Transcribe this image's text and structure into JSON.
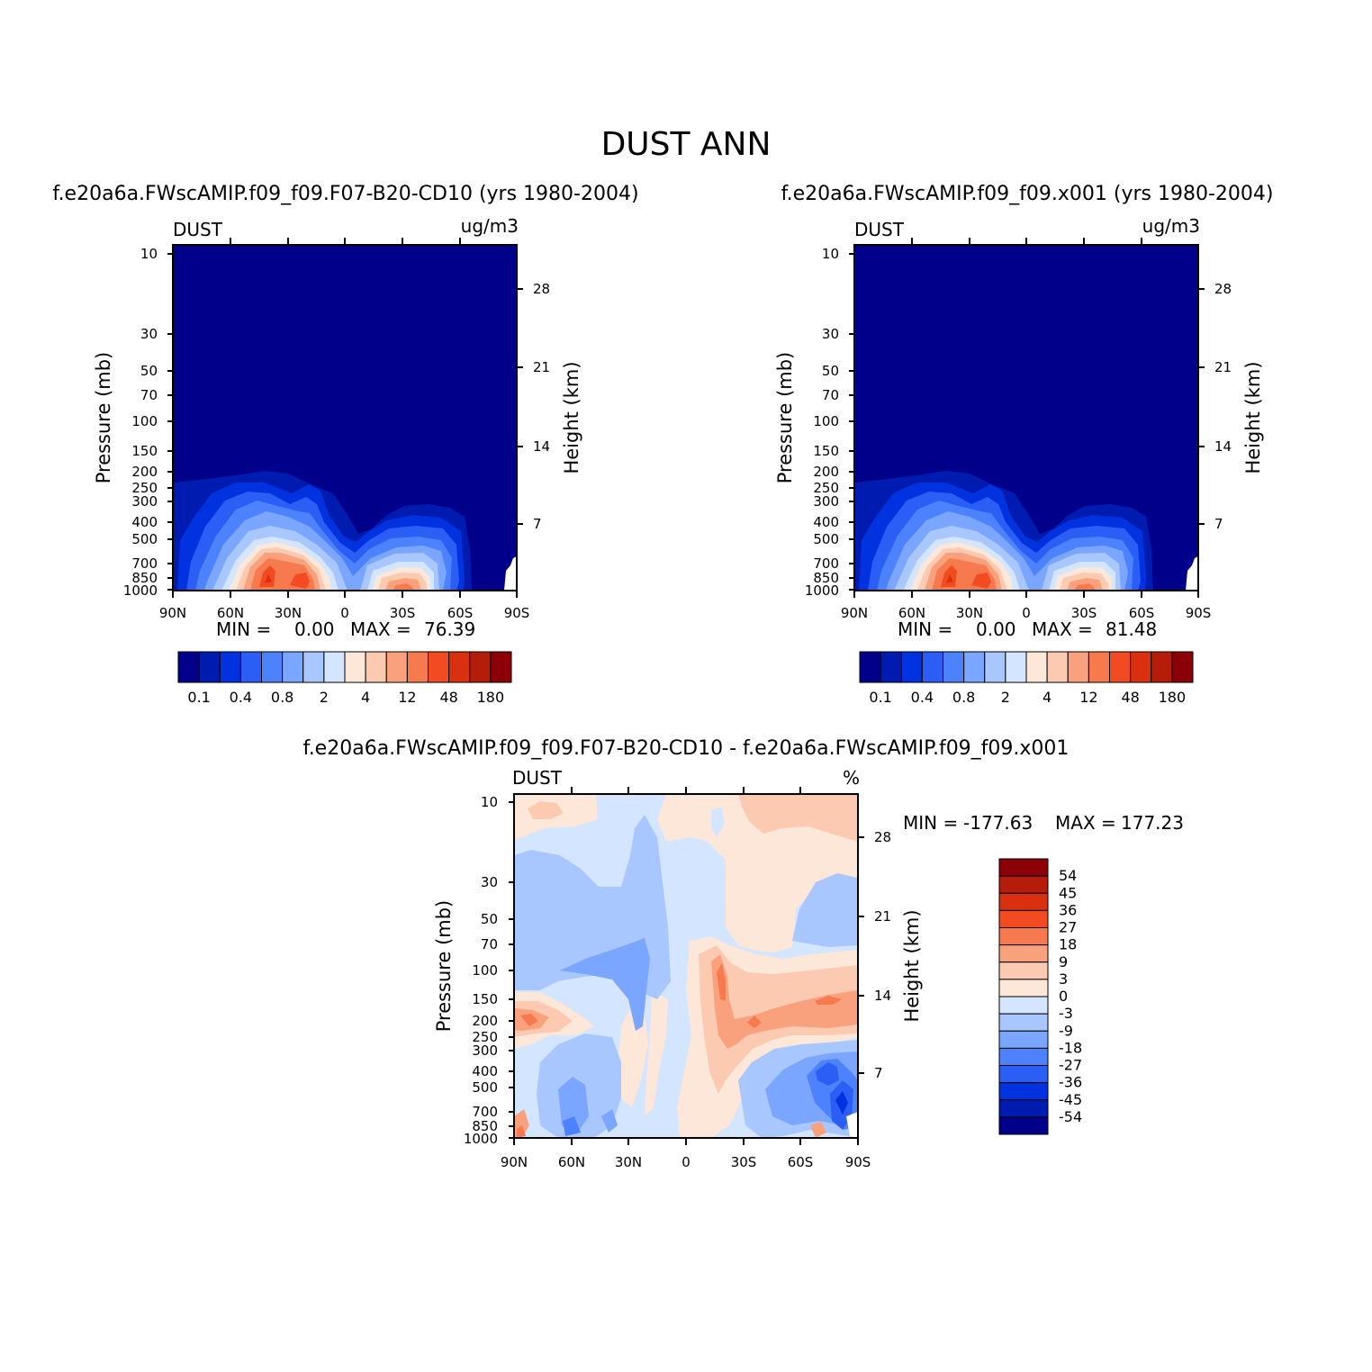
{
  "figure": {
    "main_title": "DUST ANN"
  },
  "chart_data": [
    {
      "type": "heatmap",
      "id": "panel1",
      "title": "f.e20a6a.FWscAMIP.f09_f09.F07-B20-CD10 (yrs 1980-2004)",
      "variable": "DUST",
      "units": "ug/m3",
      "xlabel": "",
      "ylabel": "Pressure (mb)",
      "ylabel_right": "Height (km)",
      "x_ticks": [
        "90N",
        "60N",
        "30N",
        "0",
        "30S",
        "60S",
        "90S"
      ],
      "y_ticks": [
        10,
        30,
        50,
        70,
        100,
        150,
        200,
        250,
        300,
        400,
        500,
        700,
        850,
        1000
      ],
      "y_ticks_right": [
        28,
        21,
        14,
        7
      ],
      "ylim": [
        1000,
        10
      ],
      "min_label": "MIN =",
      "min_value": "0.00",
      "max_label": "MAX =",
      "max_value": "76.39",
      "colorbar": {
        "orientation": "horizontal",
        "colors": [
          "#00008a",
          "#001bb0",
          "#0032e0",
          "#2a5ef5",
          "#4d82ff",
          "#7aa6ff",
          "#a8c6ff",
          "#d4e5ff",
          "#fde7d9",
          "#fcc9b1",
          "#f9a17c",
          "#f77a4e",
          "#f24b22",
          "#d93010",
          "#b51d0a",
          "#8c0008"
        ],
        "labels": [
          "0.1",
          "0.4",
          "0.8",
          "2",
          "4",
          "12",
          "48",
          "180"
        ]
      }
    },
    {
      "type": "heatmap",
      "id": "panel2",
      "title": "f.e20a6a.FWscAMIP.f09_f09.x001 (yrs 1980-2004)",
      "variable": "DUST",
      "units": "ug/m3",
      "xlabel": "",
      "ylabel": "Pressure (mb)",
      "ylabel_right": "Height (km)",
      "x_ticks": [
        "90N",
        "60N",
        "30N",
        "0",
        "30S",
        "60S",
        "90S"
      ],
      "y_ticks": [
        10,
        30,
        50,
        70,
        100,
        150,
        200,
        250,
        300,
        400,
        500,
        700,
        850,
        1000
      ],
      "y_ticks_right": [
        28,
        21,
        14,
        7
      ],
      "ylim": [
        1000,
        10
      ],
      "min_label": "MIN =",
      "min_value": "0.00",
      "max_label": "MAX =",
      "max_value": "81.48",
      "colorbar": {
        "orientation": "horizontal",
        "colors": [
          "#00008a",
          "#001bb0",
          "#0032e0",
          "#2a5ef5",
          "#4d82ff",
          "#7aa6ff",
          "#a8c6ff",
          "#d4e5ff",
          "#fde7d9",
          "#fcc9b1",
          "#f9a17c",
          "#f77a4e",
          "#f24b22",
          "#d93010",
          "#b51d0a",
          "#8c0008"
        ],
        "labels": [
          "0.1",
          "0.4",
          "0.8",
          "2",
          "4",
          "12",
          "48",
          "180"
        ]
      }
    },
    {
      "type": "heatmap",
      "id": "panel3",
      "title": "f.e20a6a.FWscAMIP.f09_f09.F07-B20-CD10 - f.e20a6a.FWscAMIP.f09_f09.x001",
      "variable": "DUST",
      "units": "%",
      "xlabel": "",
      "ylabel": "Pressure (mb)",
      "ylabel_right": "Height (km)",
      "x_ticks": [
        "90N",
        "60N",
        "30N",
        "0",
        "30S",
        "60S",
        "90S"
      ],
      "y_ticks": [
        10,
        30,
        50,
        70,
        100,
        150,
        200,
        250,
        300,
        400,
        500,
        700,
        850,
        1000
      ],
      "y_ticks_right": [
        28,
        21,
        14,
        7
      ],
      "ylim": [
        1000,
        10
      ],
      "min_label": "MIN =",
      "min_value": "-177.63",
      "max_label": "MAX =",
      "max_value": "177.23",
      "colorbar": {
        "orientation": "vertical",
        "colors": [
          "#8c0008",
          "#b51d0a",
          "#d93010",
          "#f24b22",
          "#f77a4e",
          "#f9a17c",
          "#fcc9b1",
          "#fde7d9",
          "#d4e5ff",
          "#a8c6ff",
          "#7aa6ff",
          "#4d82ff",
          "#2a5ef5",
          "#0032e0",
          "#001bb0",
          "#00008a"
        ],
        "labels": [
          "54",
          "45",
          "36",
          "27",
          "18",
          "9",
          "3",
          "0",
          "-3",
          "-9",
          "-18",
          "-27",
          "-36",
          "-45",
          "-54"
        ]
      }
    }
  ]
}
